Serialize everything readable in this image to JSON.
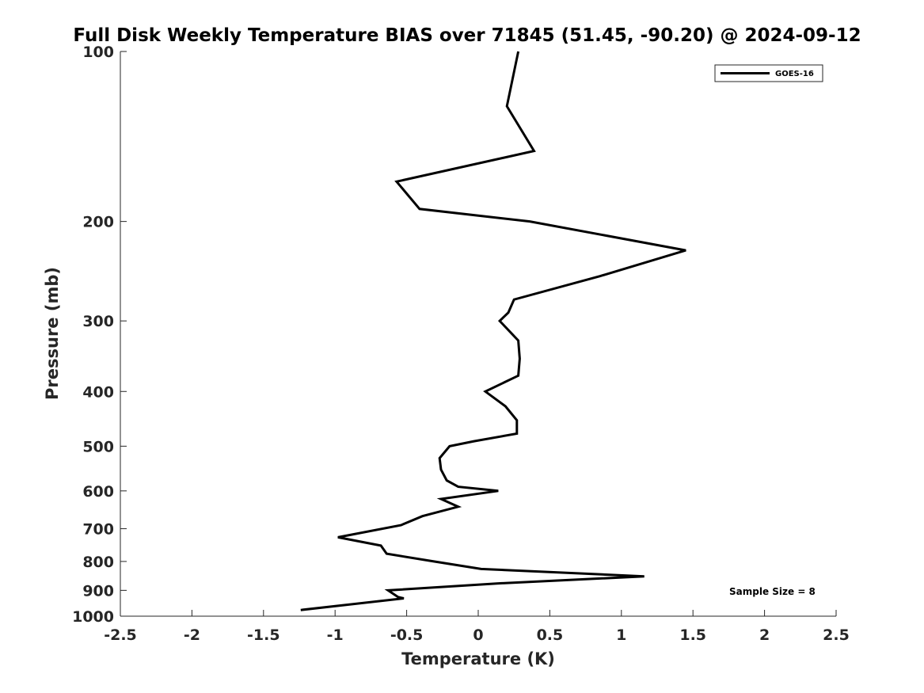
{
  "chart_data": {
    "type": "line",
    "title": "Full Disk Weekly Temperature BIAS over 71845 (51.45, -90.20) @ 2024-09-12",
    "xlabel": "Temperature (K)",
    "ylabel": "Pressure (mb)",
    "xlim": [
      -2.5,
      2.5
    ],
    "ylim": [
      100,
      1000
    ],
    "y_scale": "log",
    "y_reversed": true,
    "grid": false,
    "legend_position": "top-right",
    "x_ticks": [
      -2.5,
      -2,
      -1.5,
      -1,
      -0.5,
      0,
      0.5,
      1,
      1.5,
      2,
      2.5
    ],
    "x_tick_labels": [
      "-2.5",
      "-2",
      "-1.5",
      "-1",
      "-0.5",
      "0",
      "0.5",
      "1",
      "1.5",
      "2",
      "2.5"
    ],
    "y_ticks": [
      100,
      200,
      300,
      400,
      500,
      600,
      700,
      800,
      900,
      1000
    ],
    "y_tick_labels": [
      "100",
      "200",
      "300",
      "400",
      "500",
      "600",
      "700",
      "800",
      "900",
      "1000"
    ],
    "series": [
      {
        "name": "GOES-16",
        "color": "#000000",
        "points": [
          [
            0.28,
            100
          ],
          [
            0.2,
            125
          ],
          [
            0.39,
            150
          ],
          [
            -0.57,
            170
          ],
          [
            -0.41,
            190
          ],
          [
            0.36,
            200
          ],
          [
            1.45,
            225
          ],
          [
            0.85,
            250
          ],
          [
            0.25,
            275
          ],
          [
            0.21,
            290
          ],
          [
            0.15,
            300
          ],
          [
            0.28,
            325
          ],
          [
            0.29,
            350
          ],
          [
            0.28,
            375
          ],
          [
            0.05,
            400
          ],
          [
            0.19,
            425
          ],
          [
            0.27,
            450
          ],
          [
            0.27,
            475
          ],
          [
            -0.03,
            490
          ],
          [
            -0.2,
            500
          ],
          [
            -0.27,
            525
          ],
          [
            -0.26,
            550
          ],
          [
            -0.22,
            575
          ],
          [
            -0.14,
            590
          ],
          [
            0.14,
            600
          ],
          [
            -0.26,
            620
          ],
          [
            -0.14,
            640
          ],
          [
            -0.39,
            665
          ],
          [
            -0.54,
            690
          ],
          [
            -0.98,
            725
          ],
          [
            -0.68,
            750
          ],
          [
            -0.64,
            775
          ],
          [
            -0.31,
            800
          ],
          [
            0.02,
            825
          ],
          [
            1.16,
            850
          ],
          [
            0.13,
            875
          ],
          [
            -0.63,
            900
          ],
          [
            -0.56,
            925
          ],
          [
            -0.52,
            930
          ],
          [
            -1.24,
            975
          ]
        ]
      }
    ],
    "annotation": "Sample Size = 8"
  }
}
